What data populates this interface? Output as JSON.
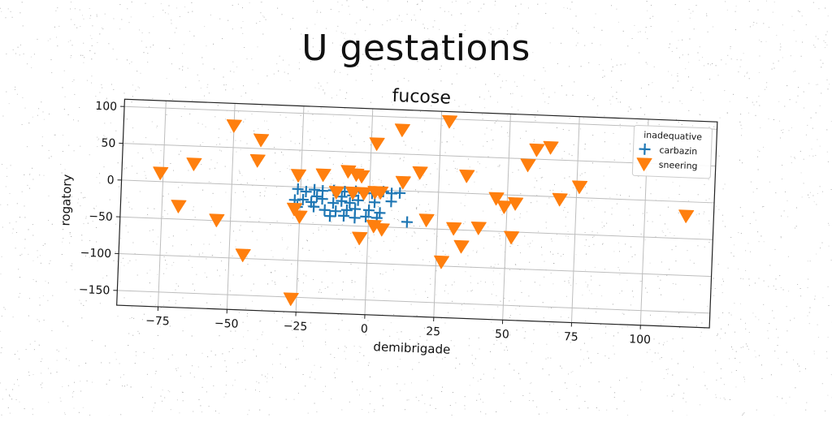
{
  "suptitle": "U gestations",
  "chart_data": {
    "type": "scatter",
    "title": "fucose",
    "xlabel": "demibrigade",
    "ylabel": "rogatory",
    "xlim": [
      -90,
      125
    ],
    "ylim": [
      -170,
      110
    ],
    "xticks": [
      -75,
      -50,
      -25,
      0,
      25,
      50,
      75,
      100
    ],
    "yticks": [
      -150,
      -100,
      -50,
      0,
      50,
      100
    ],
    "grid": true,
    "legend": {
      "title": "inadequative",
      "placement": "top-right"
    },
    "series": [
      {
        "name": "carbazin",
        "marker": "plus",
        "color": "#1f77b4",
        "points": [
          [
            -26,
            -3
          ],
          [
            -23,
            -6
          ],
          [
            -20,
            -3
          ],
          [
            -17,
            -4
          ],
          [
            -13,
            -3
          ],
          [
            -9,
            -4
          ],
          [
            -5,
            -3
          ],
          [
            -2,
            -5
          ],
          [
            1,
            -5
          ],
          [
            5,
            -2
          ],
          [
            8,
            -4
          ],
          [
            11,
            -3
          ],
          [
            -27,
            -18
          ],
          [
            -24,
            -17
          ],
          [
            -21,
            -20
          ],
          [
            -17,
            -15
          ],
          [
            -13,
            -20
          ],
          [
            -10,
            -17
          ],
          [
            -7,
            -19
          ],
          [
            -4,
            -15
          ],
          [
            2,
            -17
          ],
          [
            8,
            -15
          ],
          [
            -26,
            -27
          ],
          [
            -20,
            -26
          ],
          [
            -16,
            -30
          ],
          [
            -12,
            -31
          ],
          [
            -8,
            -29
          ],
          [
            -5,
            -27
          ],
          [
            0,
            -28
          ],
          [
            -14,
            -38
          ],
          [
            -9,
            -37
          ],
          [
            -5,
            -39
          ],
          [
            -1,
            -37
          ],
          [
            3,
            -38
          ],
          [
            -10,
            -11
          ],
          [
            -6,
            -9
          ],
          [
            14,
            -42
          ],
          [
            4,
            -31
          ],
          [
            -19,
            -12
          ]
        ]
      },
      {
        "name": "sneering",
        "marker": "triangle-down",
        "color": "#ff7f0e",
        "points": [
          [
            -50,
            80
          ],
          [
            -40,
            62
          ],
          [
            -41,
            34
          ],
          [
            -64,
            26
          ],
          [
            -76,
            12
          ],
          [
            -69,
            -32
          ],
          [
            -55,
            -49
          ],
          [
            -45,
            -95
          ],
          [
            -27,
            -152
          ],
          [
            -27,
            -30
          ],
          [
            -25,
            -40
          ],
          [
            -26,
            16
          ],
          [
            -17,
            18
          ],
          [
            -12,
            -5
          ],
          [
            -8,
            24
          ],
          [
            -5,
            20
          ],
          [
            -3,
            18
          ],
          [
            -6,
            -5
          ],
          [
            -2,
            -5
          ],
          [
            2,
            -3
          ],
          [
            4,
            -3
          ],
          [
            2,
            63
          ],
          [
            11,
            83
          ],
          [
            28,
            97
          ],
          [
            18,
            26
          ],
          [
            12,
            12
          ],
          [
            -3,
            -66
          ],
          [
            2,
            -49
          ],
          [
            5,
            -53
          ],
          [
            21,
            -38
          ],
          [
            27,
            -94
          ],
          [
            31,
            -48
          ],
          [
            34,
            -72
          ],
          [
            35,
            24
          ],
          [
            40,
            -46
          ],
          [
            46,
            -5
          ],
          [
            49,
            -16
          ],
          [
            52,
            -57
          ],
          [
            53,
            -11
          ],
          [
            57,
            42
          ],
          [
            60,
            63
          ],
          [
            65,
            67
          ],
          [
            69,
            -3
          ],
          [
            76,
            15
          ],
          [
            115,
            -19
          ]
        ]
      }
    ]
  }
}
